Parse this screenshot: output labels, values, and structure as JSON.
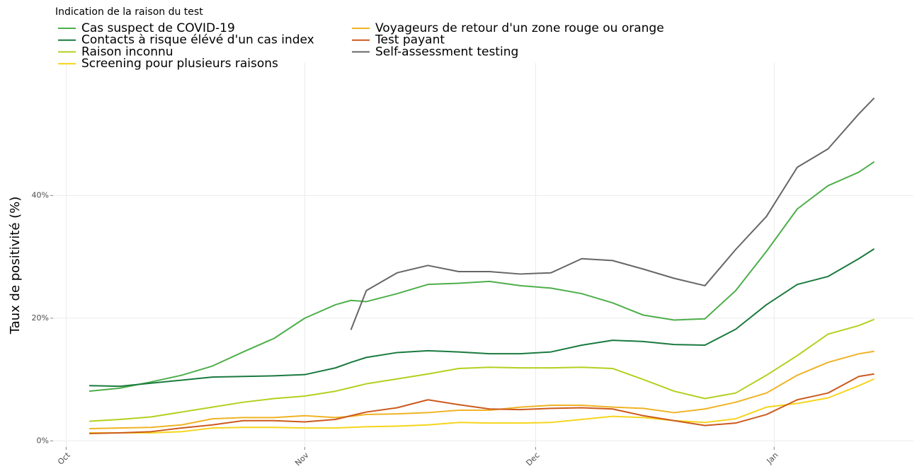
{
  "chart_data": {
    "type": "line",
    "legend_title": "Indication de la raison du test",
    "legend": "top-left",
    "y_label": "Taux de positivité (%)",
    "grid": true,
    "x": [
      3,
      7,
      11,
      15,
      19,
      23,
      27,
      31,
      35,
      37,
      39,
      43,
      47,
      51,
      55,
      59,
      63,
      67,
      71,
      75,
      79,
      83,
      87,
      91,
      95,
      99,
      103,
      105
    ],
    "xlim": [
      -1.7,
      110.1
    ],
    "xticks": [
      {
        "value": 0,
        "label": "Oct"
      },
      {
        "value": 31,
        "label": "Nov"
      },
      {
        "value": 61,
        "label": "Dec"
      },
      {
        "value": 92,
        "label": "Jan"
      }
    ],
    "ylim": [
      -1,
      57
    ],
    "yticks": [
      {
        "value": 0,
        "label": "0%"
      },
      {
        "value": 20,
        "label": "20%"
      },
      {
        "value": 40,
        "label": "40%"
      }
    ],
    "series": [
      {
        "name": "Cas suspect de COVID-19",
        "color": "#4daf4a",
        "values": [
          8.1,
          8.6,
          9.6,
          10.7,
          12.2,
          14.5,
          16.7,
          20.0,
          22.2,
          22.9,
          22.7,
          24.0,
          25.5,
          25.7,
          26.0,
          25.3,
          24.9,
          24.0,
          22.5,
          20.5,
          19.7,
          19.9,
          24.5,
          30.9,
          37.8,
          41.6,
          43.8,
          45.5
        ]
      },
      {
        "name": "Contacts à risque élévé d'un cas index",
        "color": "#1a7a3e",
        "values": [
          9.0,
          8.9,
          9.4,
          9.9,
          10.4,
          10.5,
          10.6,
          10.8,
          11.9,
          12.8,
          13.6,
          14.4,
          14.7,
          14.5,
          14.2,
          14.2,
          14.5,
          15.6,
          16.4,
          16.2,
          15.7,
          15.6,
          18.2,
          22.2,
          25.5,
          26.8,
          29.7,
          31.3
        ]
      },
      {
        "name": "Raison inconnu",
        "color": "#b5cf1e",
        "values": [
          3.2,
          3.5,
          3.9,
          4.7,
          5.5,
          6.3,
          6.9,
          7.3,
          8.1,
          8.7,
          9.3,
          10.1,
          10.9,
          11.8,
          12.0,
          11.9,
          11.9,
          12.0,
          11.8,
          10.0,
          8.1,
          6.9,
          7.8,
          10.7,
          13.9,
          17.4,
          18.8,
          19.8
        ]
      },
      {
        "name": "Screening pour plusieurs raisons",
        "color": "#f5d51c",
        "values": [
          1.3,
          1.3,
          1.3,
          1.5,
          2.1,
          2.2,
          2.2,
          2.1,
          2.1,
          2.2,
          2.3,
          2.4,
          2.6,
          3.0,
          2.9,
          2.9,
          3.0,
          3.5,
          4.0,
          3.8,
          3.3,
          3.0,
          3.6,
          5.5,
          6.1,
          7.0,
          9.0,
          10.1
        ]
      },
      {
        "name": "Voyageurs de retour d'un zone rouge ou orange",
        "color": "#f0b323",
        "values": [
          2.0,
          2.1,
          2.2,
          2.6,
          3.6,
          3.8,
          3.8,
          4.1,
          3.8,
          4.0,
          4.3,
          4.4,
          4.6,
          5.0,
          5.0,
          5.5,
          5.8,
          5.8,
          5.5,
          5.3,
          4.6,
          5.2,
          6.3,
          7.8,
          10.7,
          12.8,
          14.2,
          14.6
        ]
      },
      {
        "name": "Test payant",
        "color": "#cc5a1e",
        "values": [
          1.2,
          1.3,
          1.5,
          2.1,
          2.6,
          3.3,
          3.3,
          3.1,
          3.5,
          4.1,
          4.7,
          5.4,
          6.7,
          5.9,
          5.2,
          5.1,
          5.3,
          5.4,
          5.2,
          4.1,
          3.3,
          2.5,
          2.9,
          4.3,
          6.7,
          7.8,
          10.5,
          10.9
        ]
      },
      {
        "name": "Self-assessment testing",
        "color": "#666666",
        "values": [
          null,
          null,
          null,
          null,
          null,
          null,
          null,
          null,
          null,
          18.1,
          24.5,
          27.4,
          28.6,
          27.6,
          27.6,
          27.2,
          27.4,
          29.7,
          29.4,
          28.0,
          26.5,
          25.3,
          31.2,
          36.6,
          44.6,
          47.6,
          53.3,
          55.9
        ]
      }
    ]
  }
}
